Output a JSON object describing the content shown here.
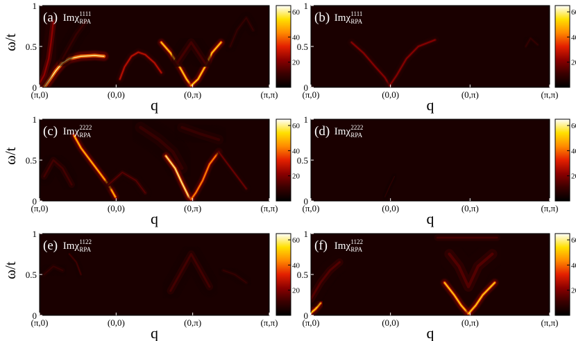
{
  "figure": {
    "ylabel": "ω/t",
    "xlabel": "q",
    "x_ticks": [
      "(π,0)",
      "(0,0)",
      "(0,π)",
      "(π,π)"
    ],
    "y_ticks": [
      "0",
      "0.5",
      "1"
    ],
    "colorbar_ticks": [
      "20",
      "40",
      "60"
    ],
    "colormap": [
      "#000000",
      "#3a0000",
      "#8b0000",
      "#e32000",
      "#ff8a00",
      "#ffe000",
      "#ffffff"
    ],
    "background_color": "#1a0000"
  },
  "chart_data": [
    {
      "type": "heatmap",
      "panel_label": "(a)",
      "quantity": "Imχ",
      "superscript": "1111",
      "subscript": "RPA",
      "x_ticks": [
        "(π,0)",
        "(0,0)",
        "(0,π)",
        "(π,π)"
      ],
      "y_ticks": [
        "0",
        "0.5",
        "1"
      ],
      "ylim": [
        0,
        1
      ],
      "colorbar_range": [
        0,
        65
      ],
      "colorbar_ticks": [
        20,
        40,
        60
      ],
      "has_ylabel": true,
      "features": [
        {
          "points": [
            [
              0.02,
              0.0
            ],
            [
              0.04,
              0.08
            ],
            [
              0.07,
              0.2
            ],
            [
              0.1,
              0.3
            ],
            [
              0.13,
              0.35
            ],
            [
              0.18,
              0.38
            ],
            [
              0.24,
              0.39
            ],
            [
              0.28,
              0.38
            ]
          ],
          "intensity": 60,
          "width": 0.045
        },
        {
          "points": [
            [
              0.0,
              0.05
            ],
            [
              0.02,
              0.15
            ],
            [
              0.04,
              0.35
            ],
            [
              0.05,
              0.55
            ],
            [
              0.06,
              0.8
            ]
          ],
          "intensity": 22,
          "width": 0.07
        },
        {
          "points": [
            [
              0.1,
              0.35
            ],
            [
              0.13,
              0.5
            ],
            [
              0.16,
              0.65
            ],
            [
              0.2,
              0.8
            ]
          ],
          "intensity": 10,
          "width": 0.08
        },
        {
          "points": [
            [
              0.35,
              0.1
            ],
            [
              0.37,
              0.25
            ],
            [
              0.4,
              0.38
            ],
            [
              0.43,
              0.43
            ],
            [
              0.46,
              0.4
            ],
            [
              0.5,
              0.3
            ],
            [
              0.53,
              0.18
            ]
          ],
          "intensity": 28,
          "width": 0.035
        },
        {
          "points": [
            [
              0.53,
              0.55
            ],
            [
              0.57,
              0.42
            ],
            [
              0.61,
              0.25
            ],
            [
              0.64,
              0.1
            ],
            [
              0.66,
              0.02
            ]
          ],
          "intensity": 55,
          "width": 0.035
        },
        {
          "points": [
            [
              0.66,
              0.02
            ],
            [
              0.69,
              0.1
            ],
            [
              0.72,
              0.25
            ],
            [
              0.75,
              0.42
            ],
            [
              0.79,
              0.55
            ]
          ],
          "intensity": 55,
          "width": 0.035
        },
        {
          "points": [
            [
              0.6,
              0.3
            ],
            [
              0.66,
              0.55
            ],
            [
              0.72,
              0.3
            ]
          ],
          "intensity": 12,
          "width": 0.1
        },
        {
          "points": [
            [
              0.83,
              0.5
            ],
            [
              0.86,
              0.7
            ],
            [
              0.9,
              0.85
            ],
            [
              0.93,
              0.7
            ]
          ],
          "intensity": 10,
          "width": 0.05
        }
      ]
    },
    {
      "type": "heatmap",
      "panel_label": "(b)",
      "quantity": "Imχ",
      "superscript": "1111",
      "subscript": "RPA",
      "x_ticks": [
        "(π,0)",
        "(0,0)",
        "(0,π)",
        "(π,π)"
      ],
      "y_ticks": [
        "0",
        "0.5",
        "1"
      ],
      "ylim": [
        0,
        1
      ],
      "colorbar_range": [
        0,
        65
      ],
      "colorbar_ticks": [
        20,
        40,
        60
      ],
      "has_ylabel": false,
      "features": [
        {
          "points": [
            [
              0.17,
              0.55
            ],
            [
              0.22,
              0.42
            ],
            [
              0.27,
              0.25
            ],
            [
              0.31,
              0.12
            ],
            [
              0.33,
              0.02
            ]
          ],
          "intensity": 22,
          "width": 0.035
        },
        {
          "points": [
            [
              0.33,
              0.02
            ],
            [
              0.36,
              0.15
            ],
            [
              0.4,
              0.35
            ],
            [
              0.45,
              0.5
            ],
            [
              0.52,
              0.58
            ]
          ],
          "intensity": 22,
          "width": 0.035
        },
        {
          "points": [
            [
              0.9,
              0.5
            ],
            [
              0.92,
              0.6
            ],
            [
              0.95,
              0.52
            ]
          ],
          "intensity": 10,
          "width": 0.04
        }
      ]
    },
    {
      "type": "heatmap",
      "panel_label": "(c)",
      "quantity": "Imχ",
      "superscript": "2222",
      "subscript": "RPA",
      "x_ticks": [
        "(π,0)",
        "(0,0)",
        "(0,π)",
        "(π,π)"
      ],
      "y_ticks": [
        "0",
        "0.5",
        "1"
      ],
      "ylim": [
        0,
        1
      ],
      "colorbar_range": [
        0,
        65
      ],
      "colorbar_ticks": [
        20,
        40,
        60
      ],
      "has_ylabel": true,
      "features": [
        {
          "points": [
            [
              0.15,
              0.8
            ],
            [
              0.18,
              0.65
            ],
            [
              0.22,
              0.5
            ],
            [
              0.26,
              0.35
            ],
            [
              0.3,
              0.2
            ],
            [
              0.33,
              0.05
            ]
          ],
          "intensity": 52,
          "width": 0.035
        },
        {
          "points": [
            [
              0.02,
              0.3
            ],
            [
              0.06,
              0.5
            ],
            [
              0.1,
              0.4
            ],
            [
              0.14,
              0.2
            ]
          ],
          "intensity": 12,
          "width": 0.08
        },
        {
          "points": [
            [
              0.3,
              0.2
            ],
            [
              0.36,
              0.35
            ],
            [
              0.42,
              0.25
            ],
            [
              0.46,
              0.1
            ]
          ],
          "intensity": 15,
          "width": 0.05
        },
        {
          "points": [
            [
              0.44,
              0.9
            ],
            [
              0.52,
              0.75
            ],
            [
              0.58,
              0.6
            ],
            [
              0.62,
              0.4
            ]
          ],
          "intensity": 10,
          "width": 0.14
        },
        {
          "points": [
            [
              0.55,
              0.55
            ],
            [
              0.59,
              0.4
            ],
            [
              0.62,
              0.22
            ],
            [
              0.65,
              0.05
            ],
            [
              0.66,
              0.02
            ]
          ],
          "intensity": 60,
          "width": 0.035
        },
        {
          "points": [
            [
              0.66,
              0.02
            ],
            [
              0.68,
              0.1
            ],
            [
              0.71,
              0.25
            ],
            [
              0.74,
              0.45
            ],
            [
              0.78,
              0.6
            ]
          ],
          "intensity": 45,
          "width": 0.035
        },
        {
          "points": [
            [
              0.78,
              0.6
            ],
            [
              0.82,
              0.45
            ],
            [
              0.86,
              0.3
            ],
            [
              0.9,
              0.15
            ]
          ],
          "intensity": 18,
          "width": 0.035
        },
        {
          "points": [
            [
              0.62,
              0.9
            ],
            [
              0.7,
              0.82
            ],
            [
              0.78,
              0.75
            ]
          ],
          "intensity": 10,
          "width": 0.12
        }
      ]
    },
    {
      "type": "heatmap",
      "panel_label": "(d)",
      "quantity": "Imχ",
      "superscript": "2222",
      "subscript": "RPA",
      "x_ticks": [
        "(π,0)",
        "(0,0)",
        "(0,π)",
        "(π,π)"
      ],
      "y_ticks": [
        "0",
        "0.5",
        "1"
      ],
      "ylim": [
        0,
        1
      ],
      "colorbar_range": [
        0,
        65
      ],
      "colorbar_ticks": [
        20,
        40,
        60
      ],
      "has_ylabel": false,
      "features": [
        {
          "points": [
            [
              0.31,
              0.05
            ],
            [
              0.33,
              0.18
            ],
            [
              0.35,
              0.3
            ]
          ],
          "intensity": 8,
          "width": 0.02
        }
      ]
    },
    {
      "type": "heatmap",
      "panel_label": "(e)",
      "quantity": "Imχ",
      "superscript": "1122",
      "subscript": "RPA",
      "x_ticks": [
        "(π,0)",
        "(0,0)",
        "(0,π)",
        "(π,π)"
      ],
      "y_ticks": [
        "0",
        "0.5",
        "1"
      ],
      "ylim": [
        0,
        1
      ],
      "colorbar_range": [
        0,
        65
      ],
      "colorbar_ticks": [
        20,
        40,
        60
      ],
      "has_ylabel": true,
      "features": [
        {
          "points": [
            [
              0.02,
              0.5
            ],
            [
              0.06,
              0.6
            ],
            [
              0.1,
              0.55
            ]
          ],
          "intensity": 10,
          "width": 0.06
        },
        {
          "points": [
            [
              0.13,
              0.75
            ],
            [
              0.16,
              0.65
            ],
            [
              0.18,
              0.5
            ]
          ],
          "intensity": 12,
          "width": 0.03
        },
        {
          "points": [
            [
              0.57,
              0.3
            ],
            [
              0.62,
              0.55
            ],
            [
              0.66,
              0.75
            ],
            [
              0.7,
              0.55
            ],
            [
              0.74,
              0.35
            ]
          ],
          "intensity": 12,
          "width": 0.09
        },
        {
          "points": [
            [
              0.8,
              0.55
            ],
            [
              0.85,
              0.5
            ],
            [
              0.9,
              0.4
            ]
          ],
          "intensity": 10,
          "width": 0.05
        }
      ]
    },
    {
      "type": "heatmap",
      "panel_label": "(f)",
      "quantity": "Imχ",
      "superscript": "1122",
      "subscript": "RPA",
      "x_ticks": [
        "(π,0)",
        "(0,0)",
        "(0,π)",
        "(π,π)"
      ],
      "y_ticks": [
        "0",
        "0.5",
        "1"
      ],
      "ylim": [
        0,
        1
      ],
      "colorbar_range": [
        0,
        65
      ],
      "colorbar_ticks": [
        20,
        40,
        60
      ],
      "has_ylabel": false,
      "features": [
        {
          "points": [
            [
              0.0,
              0.03
            ],
            [
              0.02,
              0.08
            ],
            [
              0.04,
              0.15
            ]
          ],
          "intensity": 55,
          "width": 0.035
        },
        {
          "points": [
            [
              0.0,
              0.2
            ],
            [
              0.04,
              0.4
            ],
            [
              0.08,
              0.55
            ],
            [
              0.12,
              0.65
            ]
          ],
          "intensity": 14,
          "width": 0.09
        },
        {
          "points": [
            [
              0.56,
              0.4
            ],
            [
              0.6,
              0.25
            ],
            [
              0.63,
              0.12
            ],
            [
              0.66,
              0.02
            ]
          ],
          "intensity": 55,
          "width": 0.035
        },
        {
          "points": [
            [
              0.66,
              0.02
            ],
            [
              0.69,
              0.12
            ],
            [
              0.72,
              0.25
            ],
            [
              0.77,
              0.4
            ]
          ],
          "intensity": 55,
          "width": 0.035
        },
        {
          "points": [
            [
              0.58,
              0.75
            ],
            [
              0.62,
              0.6
            ],
            [
              0.66,
              0.35
            ],
            [
              0.7,
              0.6
            ],
            [
              0.76,
              0.75
            ]
          ],
          "intensity": 14,
          "width": 0.12
        },
        {
          "points": [
            [
              0.53,
              0.95
            ],
            [
              0.6,
              0.95
            ],
            [
              0.66,
              0.95
            ],
            [
              0.72,
              0.95
            ],
            [
              0.78,
              0.95
            ]
          ],
          "intensity": 12,
          "width": 0.08
        }
      ]
    }
  ]
}
